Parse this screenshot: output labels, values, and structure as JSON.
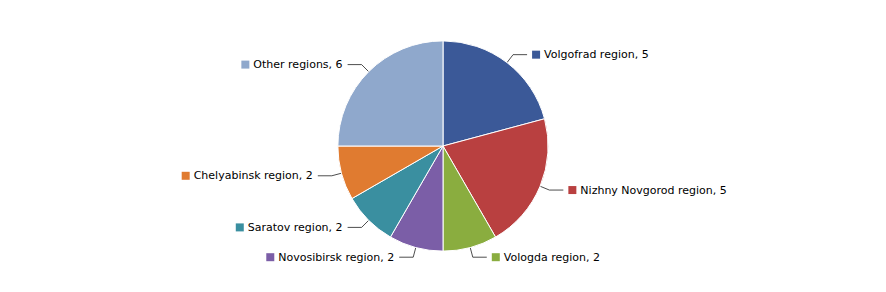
{
  "chart_data": {
    "type": "pie",
    "categories": [
      "Volgofrad region, 5",
      "Nizhny Novgorod region, 5",
      "Vologda region, 2",
      "Novosibirsk region, 2",
      "Saratov region, 2",
      "Chelyabinsk region, 2",
      "Other regions, 6"
    ],
    "values": [
      5,
      5,
      2,
      2,
      2,
      2,
      6
    ],
    "colors": [
      "#3B5998",
      "#B94040",
      "#8AAD3F",
      "#7B5EA7",
      "#3A8FA0",
      "#E07B30",
      "#8FA8CC"
    ]
  }
}
